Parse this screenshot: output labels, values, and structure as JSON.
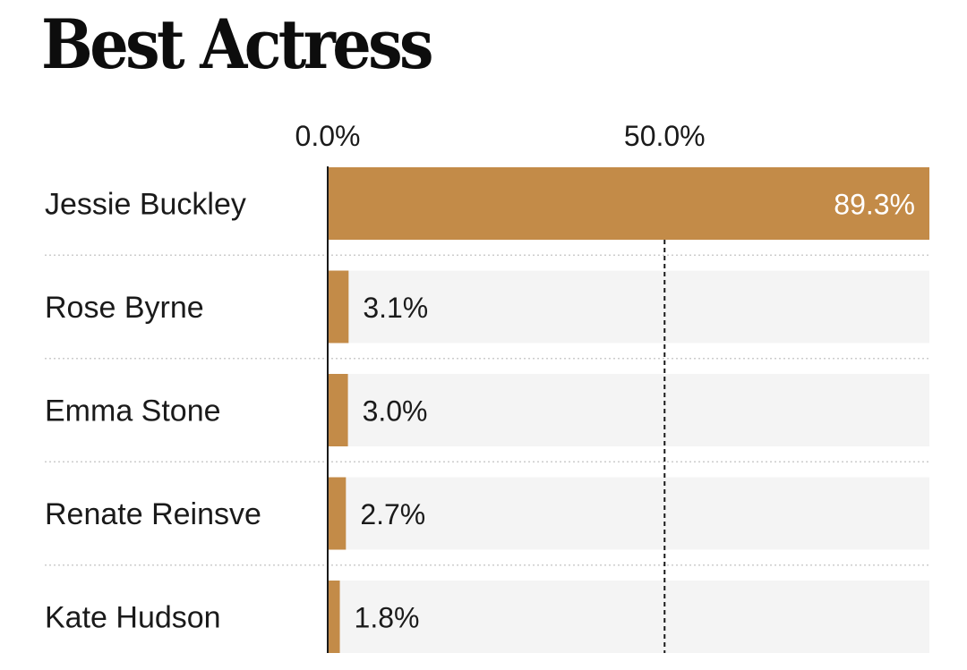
{
  "chart_data": {
    "type": "bar",
    "orientation": "horizontal",
    "title": "Best Actress",
    "categories": [
      "Jessie Buckley",
      "Rose Byrne",
      "Emma Stone",
      "Renate Reinsve",
      "Kate Hudson"
    ],
    "values": [
      89.3,
      3.1,
      3.0,
      2.7,
      1.8
    ],
    "value_labels": [
      "89.3%",
      "3.1%",
      "3.0%",
      "2.7%",
      "1.8%"
    ],
    "x_ticks": [
      {
        "value": 0,
        "label": "0.0%"
      },
      {
        "value": 50,
        "label": "50.0%"
      }
    ],
    "xlim": [
      0,
      89.3
    ],
    "xlabel": "",
    "ylabel": "",
    "grid": false,
    "legend": "none",
    "colors": {
      "bar": "#c38b48",
      "track": "#f4f4f4",
      "text": "#1a1a1a",
      "inside_label": "#ffffff",
      "separator": "#cccccc",
      "reference_line": "#1a1a1a"
    }
  }
}
